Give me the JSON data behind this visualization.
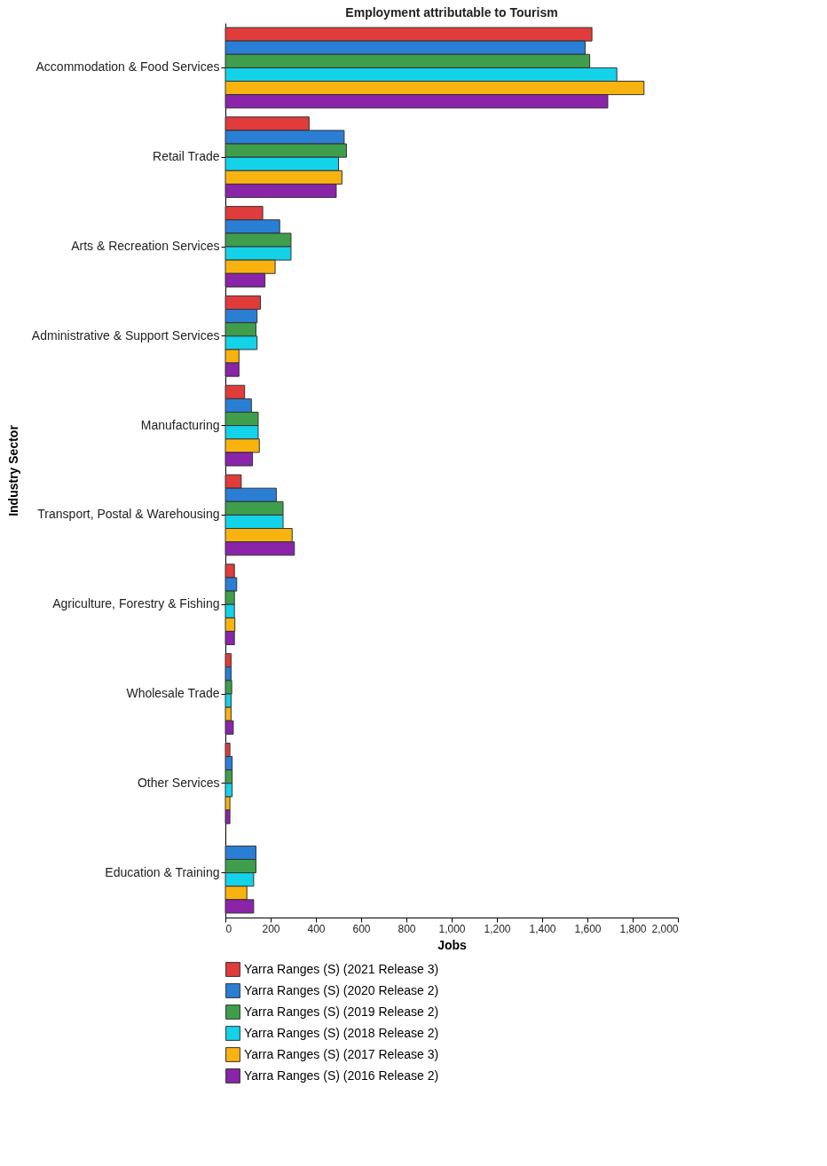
{
  "chart_data": {
    "type": "bar",
    "orientation": "horizontal",
    "title": "Employment attributable to Tourism",
    "xlabel": "Jobs",
    "ylabel": "Industry Sector",
    "categories": [
      "Accommodation & Food Services",
      "Retail Trade",
      "Arts & Recreation Services",
      "Administrative & Support Services",
      "Manufacturing",
      "Transport, Postal & Warehousing",
      "Agriculture, Forestry & Fishing",
      "Wholesale Trade",
      "Other Services",
      "Education & Training"
    ],
    "series": [
      {
        "name": "Yarra Ranges (S) (2021 Release 3)",
        "color": "#e03c3c",
        "values": [
          1620,
          370,
          165,
          155,
          85,
          70,
          40,
          25,
          20,
          null
        ]
      },
      {
        "name": "Yarra Ranges (S) (2020 Release 2)",
        "color": "#2a7fd4",
        "values": [
          1590,
          525,
          240,
          140,
          115,
          225,
          50,
          25,
          30,
          135
        ]
      },
      {
        "name": "Yarra Ranges (S) (2019 Release 2)",
        "color": "#3f9e4c",
        "values": [
          1610,
          535,
          290,
          135,
          145,
          255,
          40,
          28,
          30,
          135
        ]
      },
      {
        "name": "Yarra Ranges (S) (2018 Release 2)",
        "color": "#14d2e8",
        "values": [
          1730,
          500,
          290,
          140,
          145,
          255,
          40,
          25,
          30,
          125
        ]
      },
      {
        "name": "Yarra Ranges (S) (2017 Release 3)",
        "color": "#f8b310",
        "values": [
          1850,
          515,
          220,
          60,
          150,
          295,
          42,
          25,
          20,
          95
        ]
      },
      {
        "name": "Yarra Ranges (S) (2016 Release 2)",
        "color": "#8a24a8",
        "values": [
          1690,
          490,
          175,
          60,
          120,
          305,
          40,
          35,
          20,
          125
        ]
      }
    ],
    "xlim": [
      0,
      2000
    ],
    "xticks": [
      0,
      200,
      400,
      600,
      800,
      {
        "value": 1000,
        "label": "1,000"
      },
      {
        "value": 1200,
        "label": "1,200"
      },
      {
        "value": 1400,
        "label": "1,400"
      },
      {
        "value": 1600,
        "label": "1,600"
      },
      {
        "value": 1800,
        "label": "1,800"
      },
      {
        "value": 2000,
        "label": "2,000"
      }
    ],
    "grid": false,
    "legend": "bottom"
  }
}
